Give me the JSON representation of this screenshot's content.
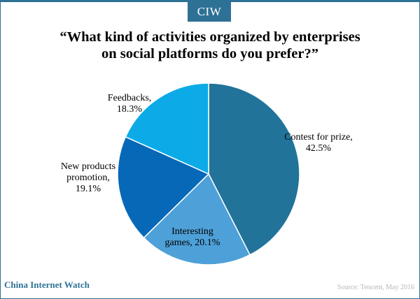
{
  "brand": {
    "logo_text": "CIW",
    "site_name": "China Internet Watch",
    "color": "#2e7196"
  },
  "source": "Source: Tencent, May 2016",
  "chart_data": {
    "type": "pie",
    "title_lines": [
      "“What kind of activities organized by enterprises",
      "on social platforms do you prefer?”"
    ],
    "slices": [
      {
        "label_lines": [
          "Contest for prize,",
          "42.5%"
        ],
        "category": "Contest for prize",
        "value": 42.5,
        "color": "#21739a"
      },
      {
        "label_lines": [
          "Interesting",
          "games, 20.1%"
        ],
        "category": "Interesting games",
        "value": 20.1,
        "color": "#4ea0d8"
      },
      {
        "label_lines": [
          "New products",
          "promotion,",
          "19.1%"
        ],
        "category": "New products promotion",
        "value": 19.1,
        "color": "#0868b8"
      },
      {
        "label_lines": [
          "Feedbacks,",
          "18.3%"
        ],
        "category": "Feedbacks",
        "value": 18.3,
        "color": "#0cabe8"
      }
    ]
  }
}
